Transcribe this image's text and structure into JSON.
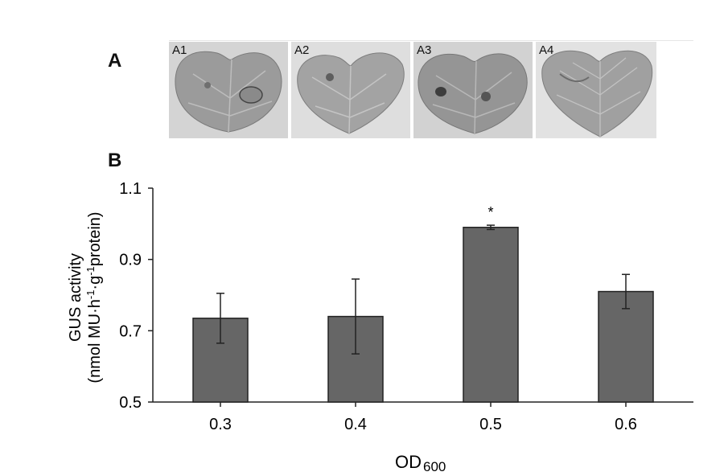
{
  "panels": {
    "a_label": "A",
    "b_label": "B"
  },
  "photos": [
    {
      "label": "A1"
    },
    {
      "label": "A2"
    },
    {
      "label": "A3"
    },
    {
      "label": "A4"
    }
  ],
  "chart_data": {
    "type": "bar",
    "categories": [
      "0.3",
      "0.4",
      "0.5",
      "0.6"
    ],
    "values": [
      0.735,
      0.74,
      0.99,
      0.81
    ],
    "errors": [
      0.07,
      0.105,
      0.006,
      0.048
    ],
    "annotations": [
      "",
      "",
      "*",
      ""
    ],
    "ylabel_line1": "GUS activity",
    "ylabel_line2": "(nmol MU·h",
    "ylabel_sup1": "-1",
    "ylabel_mid": "·g",
    "ylabel_sup2": "-1",
    "ylabel_end": "protein)",
    "xlabel_main": "OD",
    "xlabel_sub": "600",
    "ylim": [
      0.5,
      1.1
    ],
    "yticks": [
      "0.5",
      "0.7",
      "0.9",
      "1.1"
    ],
    "ytick_values": [
      0.5,
      0.7,
      0.9,
      1.1
    ],
    "bar_color": "#666666",
    "grid": false,
    "legend": "none"
  }
}
